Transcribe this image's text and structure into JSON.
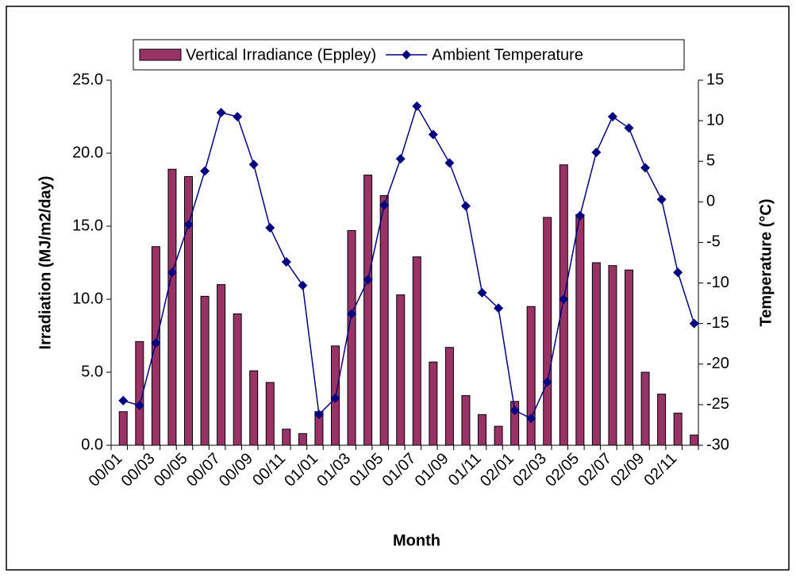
{
  "chart_data": {
    "type": "bar-line",
    "x_label": "Month",
    "y_label": "Irradiation (MJ/m2/day)",
    "y2_label": "Temperature (°C)",
    "categories": [
      "00/01",
      null,
      "00/03",
      null,
      "00/05",
      null,
      "00/07",
      null,
      "00/09",
      null,
      "00/11",
      null,
      "01/01",
      null,
      "01/03",
      null,
      "01/05",
      null,
      "01/07",
      null,
      "01/09",
      null,
      "01/11",
      null,
      "02/01",
      null,
      "02/03",
      null,
      "02/05",
      null,
      "02/07",
      null,
      "02/09",
      null,
      "02/11",
      null
    ],
    "series": [
      {
        "name": "Vertical Irradiance (Eppley)",
        "type": "bar",
        "color": "#993366",
        "values": [
          2.3,
          7.1,
          13.6,
          18.9,
          18.4,
          10.2,
          11.0,
          9.0,
          5.1,
          4.3,
          1.1,
          0.8,
          2.3,
          6.8,
          14.7,
          18.5,
          17.1,
          10.3,
          12.9,
          5.7,
          6.7,
          3.4,
          2.1,
          1.3,
          3.0,
          9.5,
          15.6,
          19.2,
          15.8,
          12.5,
          12.3,
          12.0,
          5.0,
          3.5,
          2.2,
          0.7
        ]
      },
      {
        "name": "Ambient Temperature",
        "type": "line",
        "axis": "y2",
        "color": "#000080",
        "values": [
          -24.5,
          -25.1,
          -17.4,
          -8.7,
          -2.8,
          3.8,
          11.0,
          10.5,
          4.6,
          -3.2,
          -7.4,
          -10.3,
          -26.2,
          -24.2,
          -13.8,
          -9.6,
          -0.4,
          5.3,
          11.8,
          8.3,
          4.8,
          -0.5,
          -11.2,
          -13.1,
          -25.7,
          -26.7,
          -22.2,
          -12.0,
          -1.7,
          6.1,
          10.5,
          9.1,
          4.2,
          0.3,
          -8.7,
          -15.0
        ]
      }
    ],
    "ylim": [
      0,
      25
    ],
    "yticks": [
      {
        "value": 0,
        "label": "0.0"
      },
      {
        "value": 5,
        "label": "5.0"
      },
      {
        "value": 10,
        "label": "10.0"
      },
      {
        "value": 15,
        "label": "15.0"
      },
      {
        "value": 20,
        "label": "20.0"
      },
      {
        "value": 25,
        "label": "25.0"
      }
    ],
    "y2lim": [
      -30,
      15
    ],
    "y2ticks": [
      -30,
      -25,
      -20,
      -15,
      -10,
      -5,
      0,
      5,
      10,
      15
    ],
    "grid": false,
    "legend": "top"
  }
}
